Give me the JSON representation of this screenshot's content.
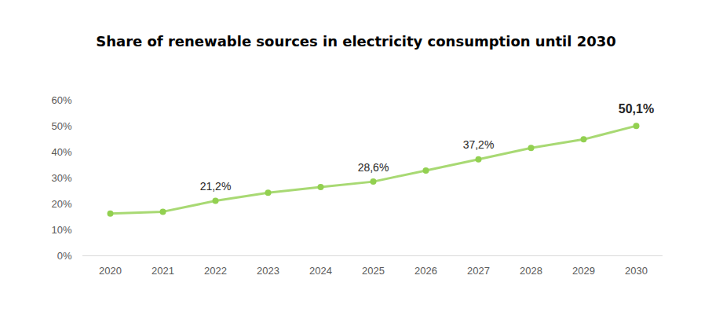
{
  "chart_data": {
    "type": "line",
    "title": "Share of renewable sources in electricity consumption until 2030",
    "categories": [
      "2020",
      "2021",
      "2022",
      "2023",
      "2024",
      "2025",
      "2026",
      "2027",
      "2028",
      "2029",
      "2030"
    ],
    "values": [
      16.3,
      17.0,
      21.2,
      24.3,
      26.5,
      28.6,
      32.9,
      37.2,
      41.6,
      44.9,
      50.1
    ],
    "value_labels": [
      null,
      null,
      "21,2%",
      null,
      null,
      "28,6%",
      null,
      "37,2%",
      null,
      null,
      "50,1%"
    ],
    "data_labels": true,
    "color": "#92d050",
    "marker": "circle",
    "ylim": [
      0,
      60
    ],
    "yticks": [
      {
        "value": 0,
        "label": "0%"
      },
      {
        "value": 10,
        "label": "10%"
      },
      {
        "value": 20,
        "label": "20%"
      },
      {
        "value": 30,
        "label": "30%"
      },
      {
        "value": 40,
        "label": "40%"
      },
      {
        "value": 50,
        "label": "50%"
      },
      {
        "value": 60,
        "label": "60%"
      }
    ],
    "grid": false
  }
}
